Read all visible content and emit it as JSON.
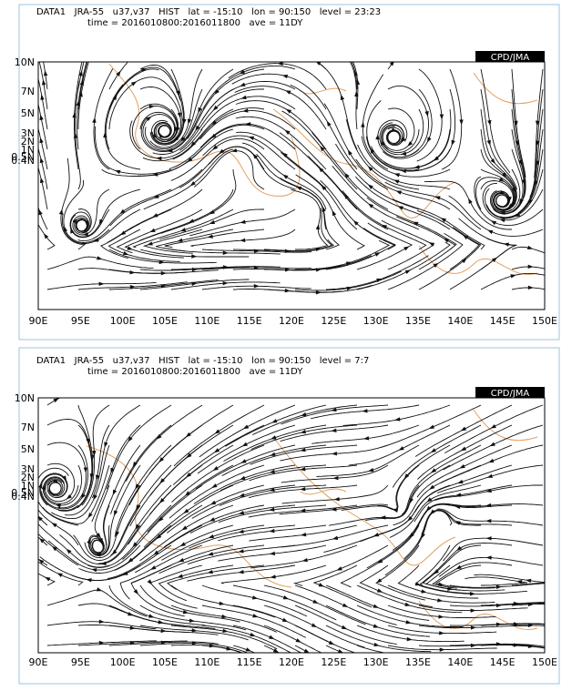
{
  "panels": [
    {
      "header": {
        "line1": "DATA1   JRA-55   u37,v37   HIST   lat = -15:10   lon = 90:150   level = 23:23",
        "line2": "time = 2016010800:2016011800   ave = 11DY"
      },
      "badge": "CPD/JMA",
      "xticks": [
        "90E",
        "95E",
        "100E",
        "105E",
        "110E",
        "115E",
        "120E",
        "125E",
        "130E",
        "135E",
        "140E",
        "145E",
        "150E"
      ],
      "yticks": [
        "10N",
        "7N",
        "5N",
        "3N",
        "2N",
        "1N",
        "0.5N",
        "0.4N"
      ]
    },
    {
      "header": {
        "line1": "DATA1   JRA-55   u37,v37   HIST   lat = -15:10   lon = 90:150   level = 7:7",
        "line2": "time = 2016010800:2016011800   ave = 11DY"
      },
      "badge": "CPD/JMA",
      "xticks": [
        "90E",
        "95E",
        "100E",
        "105E",
        "110E",
        "115E",
        "120E",
        "125E",
        "130E",
        "135E",
        "140E",
        "145E",
        "150E"
      ],
      "yticks": [
        "10N",
        "7N",
        "5N",
        "3N",
        "2N",
        "1N",
        "0.5N",
        "0.4N"
      ]
    }
  ]
}
